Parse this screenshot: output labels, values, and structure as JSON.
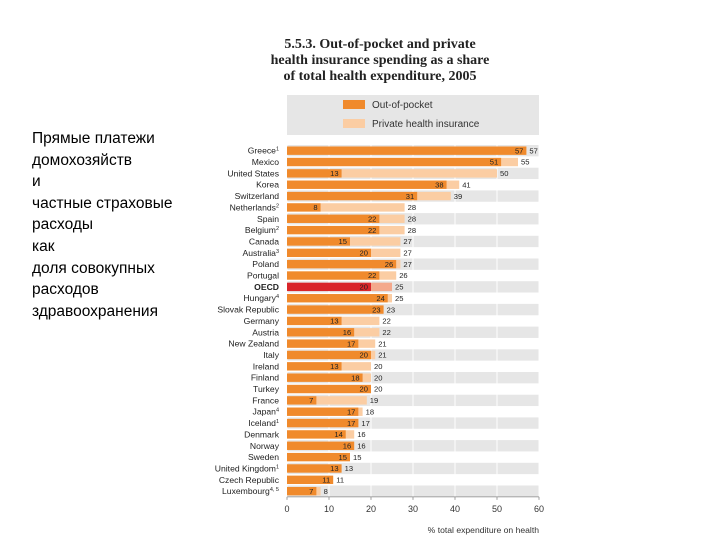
{
  "side_text": {
    "lines": [
      "Прямые платежи",
      "домохозяйств",
      "и",
      "частные страховые",
      "расходы",
      "как",
      "доля совокупных",
      "расходов",
      "здравоохранения"
    ]
  },
  "colors": {
    "out_of_pocket": "#f08a2c",
    "private_insurance": "#fbcda3",
    "oecd_out_of_pocket": "#d9252a",
    "oecd_private": "#f4a98c",
    "background_band": "#e6e6e6"
  },
  "chart_data": {
    "type": "bar",
    "orientation": "horizontal",
    "stacked": true,
    "title": "5.5.3. Out-of-pocket and private health insurance spending as a share of total health expenditure, 2005",
    "title_lines": [
      "5.5.3. Out-of-pocket and private",
      "health insurance spending as a share",
      "of total health expenditure, 2005"
    ],
    "xlabel": "% total expenditure on health",
    "xlim": [
      0,
      60
    ],
    "xticks": [
      "0",
      "10",
      "20",
      "30",
      "40",
      "50",
      "60"
    ],
    "legend": [
      "Out-of-pocket",
      "Private health insurance"
    ],
    "legend_position": "top",
    "grid": true,
    "categories": [
      {
        "name": "Greece",
        "sup": "1",
        "oop": 57,
        "total": 57
      },
      {
        "name": "Mexico",
        "sup": "",
        "oop": 51,
        "total": 55
      },
      {
        "name": "United States",
        "sup": "",
        "oop": 13,
        "total": 50
      },
      {
        "name": "Korea",
        "sup": "",
        "oop": 38,
        "total": 41
      },
      {
        "name": "Switzerland",
        "sup": "",
        "oop": 31,
        "total": 39
      },
      {
        "name": "Netherlands",
        "sup": "2",
        "oop": 8,
        "total": 28
      },
      {
        "name": "Spain",
        "sup": "",
        "oop": 22,
        "total": 28
      },
      {
        "name": "Belgium",
        "sup": "2",
        "oop": 22,
        "total": 28
      },
      {
        "name": "Canada",
        "sup": "",
        "oop": 15,
        "total": 27
      },
      {
        "name": "Australia",
        "sup": "3",
        "oop": 20,
        "total": 27
      },
      {
        "name": "Poland",
        "sup": "",
        "oop": 26,
        "total": 27
      },
      {
        "name": "Portugal",
        "sup": "",
        "oop": 22,
        "total": 26
      },
      {
        "name": "OECD",
        "sup": "",
        "oop": 20,
        "total": 25,
        "highlight": true
      },
      {
        "name": "Hungary",
        "sup": "4",
        "oop": 24,
        "total": 25
      },
      {
        "name": "Slovak Republic",
        "sup": "",
        "oop": 23,
        "total": 23
      },
      {
        "name": "Germany",
        "sup": "",
        "oop": 13,
        "total": 22
      },
      {
        "name": "Austria",
        "sup": "",
        "oop": 16,
        "total": 22
      },
      {
        "name": "New Zealand",
        "sup": "",
        "oop": 17,
        "total": 21
      },
      {
        "name": "Italy",
        "sup": "",
        "oop": 20,
        "total": 21
      },
      {
        "name": "Ireland",
        "sup": "",
        "oop": 13,
        "total": 20
      },
      {
        "name": "Finland",
        "sup": "",
        "oop": 18,
        "total": 20
      },
      {
        "name": "Turkey",
        "sup": "",
        "oop": 20,
        "total": 20
      },
      {
        "name": "France",
        "sup": "",
        "oop": 7,
        "total": 19
      },
      {
        "name": "Japan",
        "sup": "4",
        "oop": 17,
        "total": 18
      },
      {
        "name": "Iceland",
        "sup": "1",
        "oop": 17,
        "total": 17
      },
      {
        "name": "Denmark",
        "sup": "",
        "oop": 14,
        "total": 16
      },
      {
        "name": "Norway",
        "sup": "",
        "oop": 16,
        "total": 16
      },
      {
        "name": "Sweden",
        "sup": "",
        "oop": 15,
        "total": 15
      },
      {
        "name": "United Kingdom",
        "sup": "1",
        "oop": 13,
        "total": 13
      },
      {
        "name": "Czech Republic",
        "sup": "",
        "oop": 11,
        "total": 11
      },
      {
        "name": "Luxembourg",
        "sup": "4, 5",
        "oop": 7,
        "total": 8
      }
    ]
  }
}
